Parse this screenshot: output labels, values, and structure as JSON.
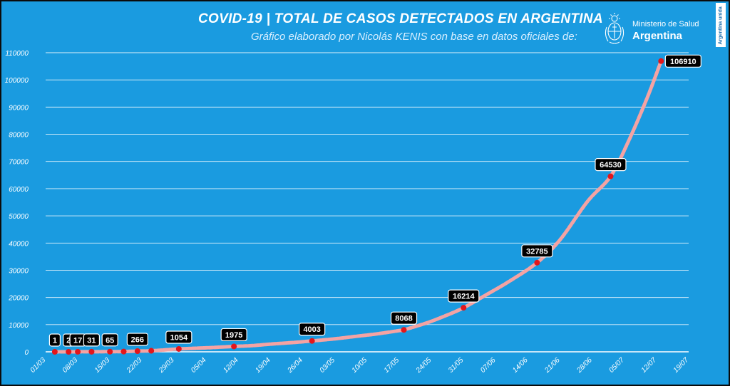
{
  "header": {
    "title": "COVID-19  |  TOTAL DE CASOS DETECTADOS EN ARGENTINA",
    "subtitle": "Gráfico elaborado por Nicolás KENIS con base en datos oficiales de:"
  },
  "logo": {
    "ministry": "Ministerio de Salud",
    "country": "Argentina",
    "emblem_icon": "argentina-coat-of-arms-icon"
  },
  "side_tag": "Argentina unida",
  "colors": {
    "background": "#1a9be0",
    "line": "#f4a3a3",
    "marker": "#e3161b",
    "grid": "#ffffff",
    "label_box": "#000000"
  },
  "chart_data": {
    "type": "line",
    "title": "COVID-19  |  TOTAL DE CASOS DETECTADOS EN ARGENTINA",
    "xlabel": "",
    "ylabel": "",
    "ylim": [
      0,
      110000
    ],
    "yticks": [
      0,
      10000,
      20000,
      30000,
      40000,
      50000,
      60000,
      70000,
      80000,
      90000,
      100000,
      110000
    ],
    "xticks": [
      "01/03",
      "08/03",
      "15/03",
      "22/03",
      "29/03",
      "05/04",
      "12/04",
      "19/04",
      "26/04",
      "03/05",
      "10/05",
      "17/05",
      "24/05",
      "31/05",
      "07/06",
      "14/06",
      "21/06",
      "28/06",
      "05/07",
      "12/07",
      "19/07"
    ],
    "x_start": "01/03",
    "x_end": "19/07",
    "grid": true,
    "series": [
      {
        "points": [
          [
            "03/03",
            1
          ],
          [
            "06/03",
            2
          ],
          [
            "08/03",
            17
          ],
          [
            "11/03",
            31
          ],
          [
            "15/03",
            65
          ],
          [
            "18/03",
            97
          ],
          [
            "21/03",
            266
          ],
          [
            "24/03",
            387
          ],
          [
            "30/03",
            1054
          ],
          [
            "02/04",
            1265
          ],
          [
            "06/04",
            1554
          ],
          [
            "10/04",
            1894
          ],
          [
            "11/04",
            1975
          ],
          [
            "15/04",
            2277
          ],
          [
            "19/04",
            2839
          ],
          [
            "24/04",
            3435
          ],
          [
            "28/04",
            4003
          ],
          [
            "03/05",
            4783
          ],
          [
            "08/05",
            5776
          ],
          [
            "12/05",
            6563
          ],
          [
            "17/05",
            7805
          ],
          [
            "18/05",
            8068
          ],
          [
            "23/05",
            10649
          ],
          [
            "27/05",
            13228
          ],
          [
            "31/05",
            16214
          ],
          [
            "05/06",
            21037
          ],
          [
            "10/06",
            25987
          ],
          [
            "16/06",
            32785
          ],
          [
            "21/06",
            41204
          ],
          [
            "27/06",
            55343
          ],
          [
            "02/07",
            64530
          ],
          [
            "06/07",
            77815
          ],
          [
            "10/07",
            93526
          ],
          [
            "13/07",
            106910
          ]
        ]
      }
    ],
    "annotations": [
      {
        "x": "03/03",
        "value": 1,
        "label": "1"
      },
      {
        "x": "06/03",
        "value": 2,
        "label": "2"
      },
      {
        "x": "08/03",
        "value": 17,
        "label": "17"
      },
      {
        "x": "11/03",
        "value": 31,
        "label": "31"
      },
      {
        "x": "15/03",
        "value": 65,
        "label": "65"
      },
      {
        "x": "21/03",
        "value": 266,
        "label": "266"
      },
      {
        "x": "30/03",
        "value": 1054,
        "label": "1054"
      },
      {
        "x": "11/04",
        "value": 1975,
        "label": "1975"
      },
      {
        "x": "28/04",
        "value": 4003,
        "label": "4003"
      },
      {
        "x": "18/05",
        "value": 8068,
        "label": "8068"
      },
      {
        "x": "31/05",
        "value": 16214,
        "label": "16214"
      },
      {
        "x": "16/06",
        "value": 32785,
        "label": "32785"
      },
      {
        "x": "02/07",
        "value": 64530,
        "label": "64530"
      },
      {
        "x": "13/07",
        "value": 106910,
        "label": "106910"
      }
    ],
    "marker_dates": [
      "03/03",
      "06/03",
      "08/03",
      "11/03",
      "15/03",
      "18/03",
      "21/03",
      "24/03",
      "30/03",
      "11/04",
      "28/04",
      "18/05",
      "31/05",
      "16/06",
      "02/07",
      "13/07"
    ]
  }
}
